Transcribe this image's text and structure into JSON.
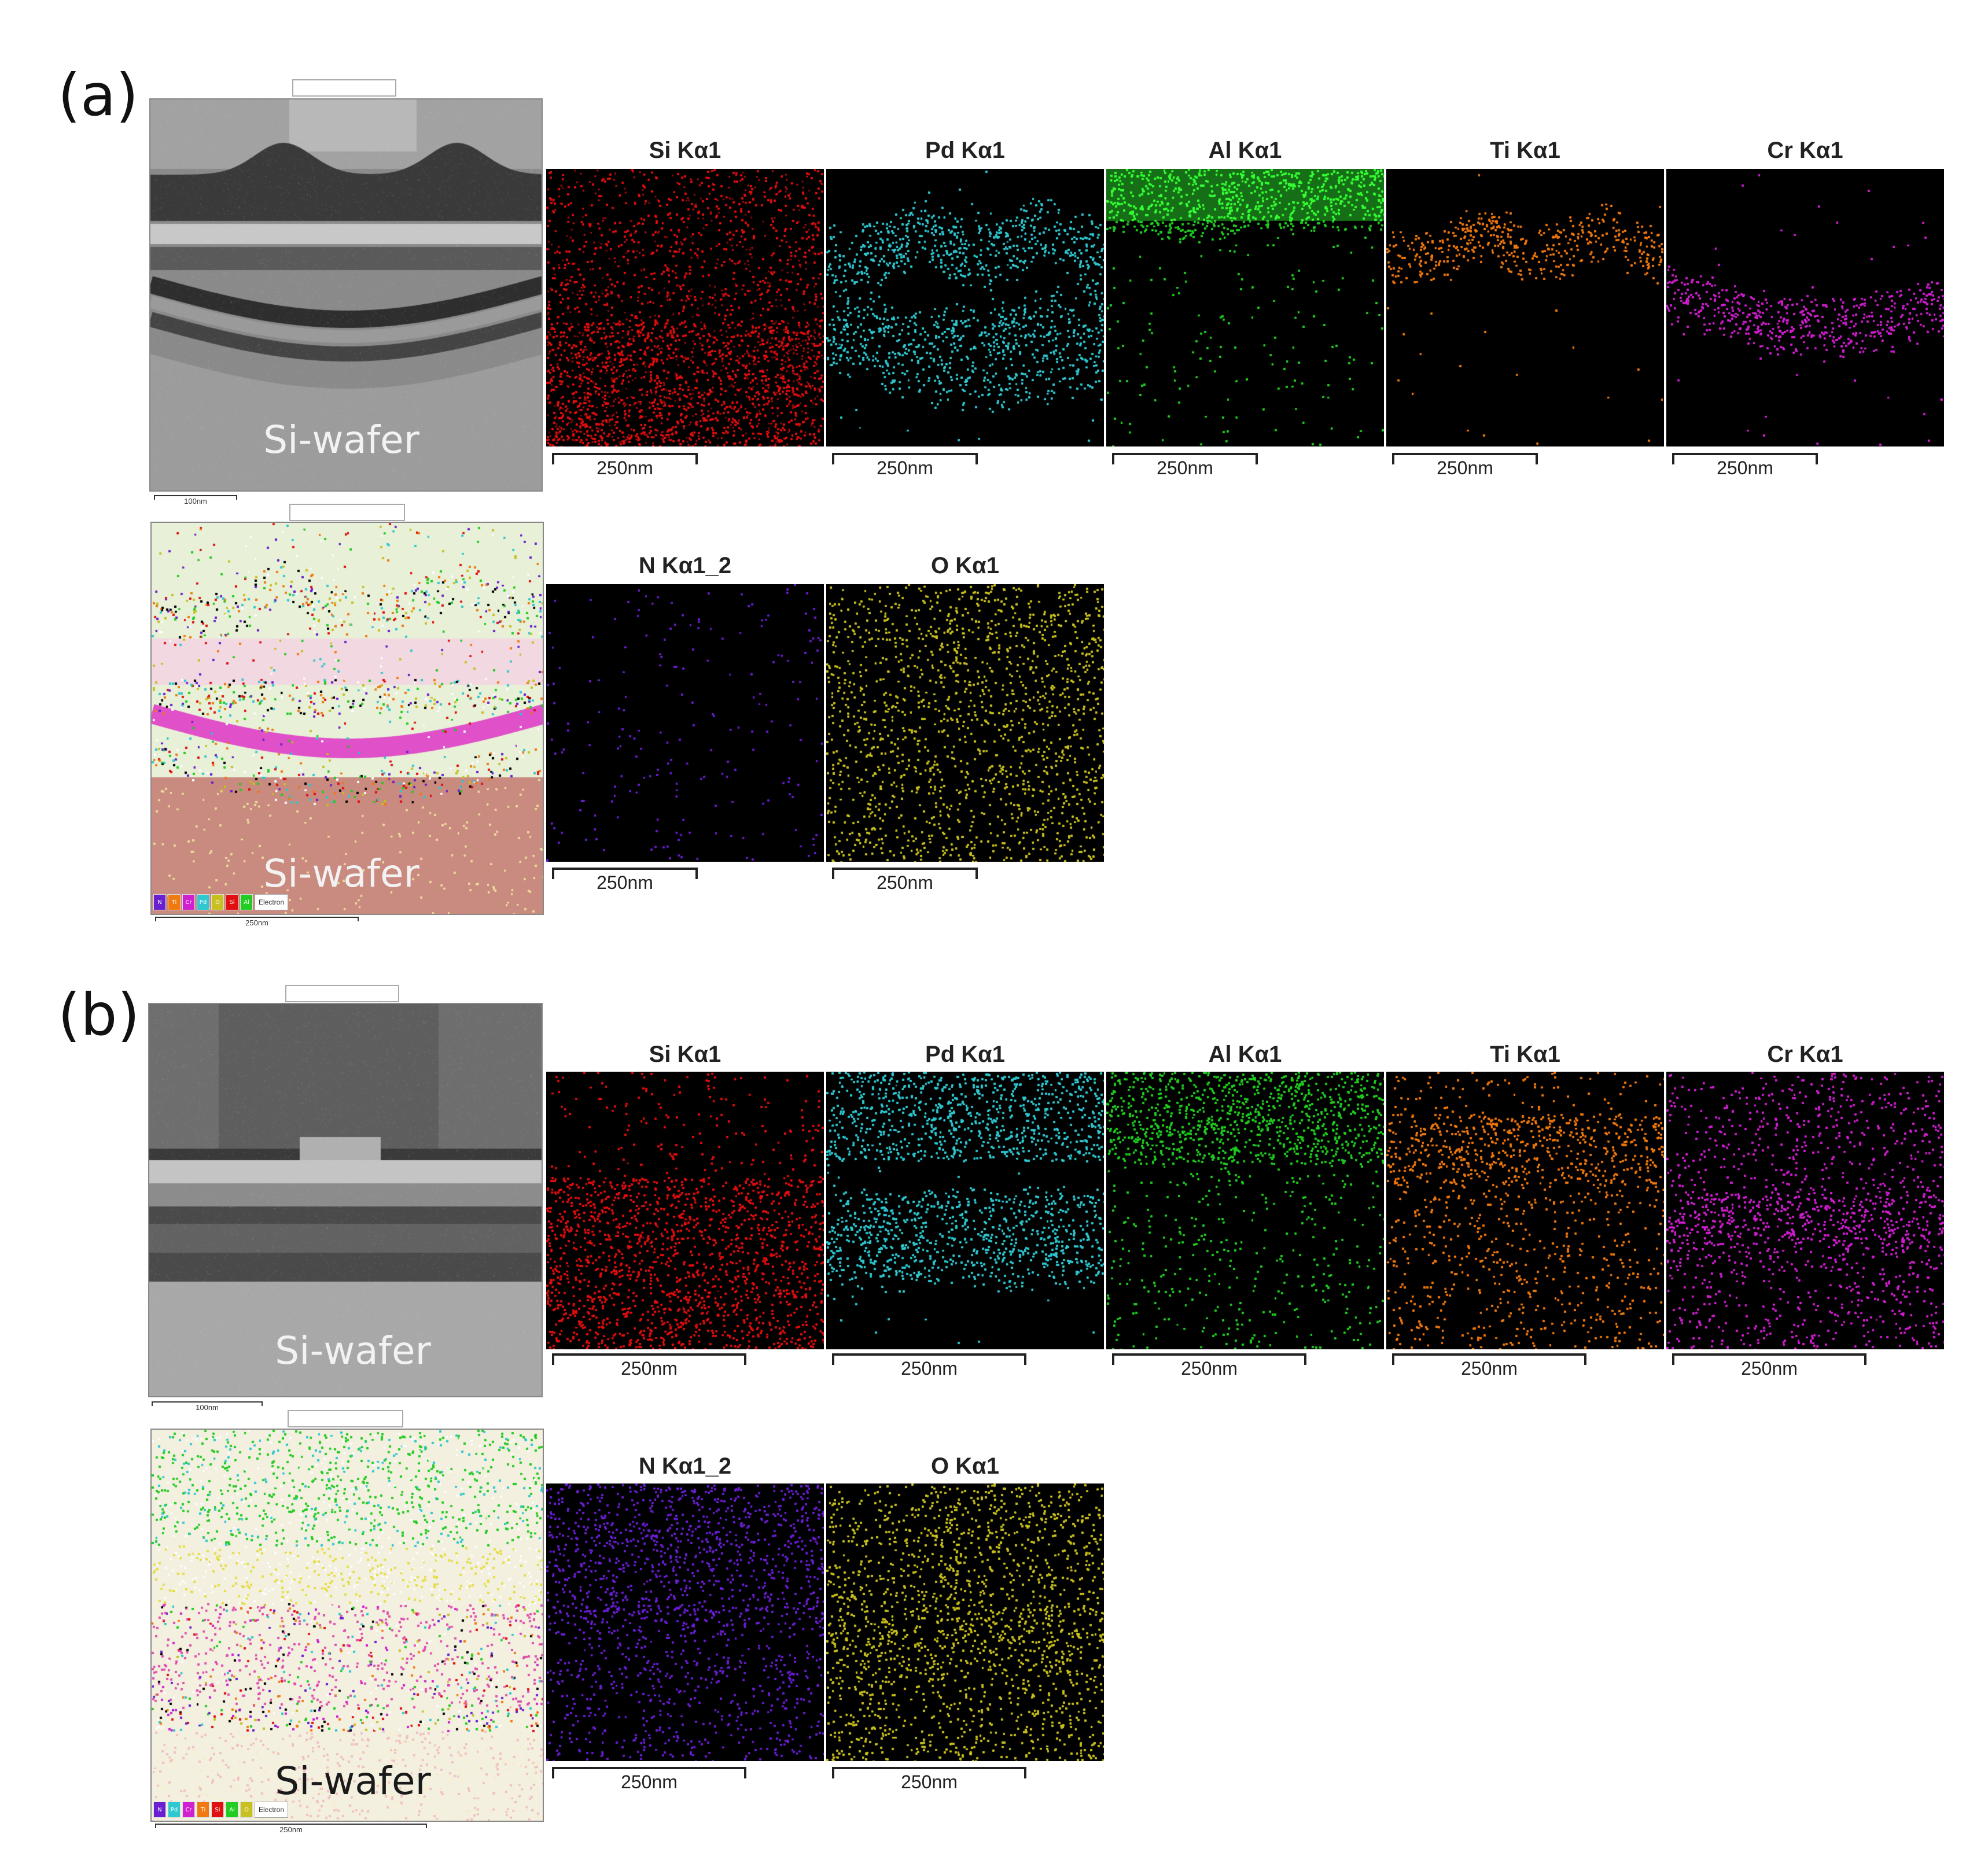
{
  "panels": [
    {
      "label": "(a)",
      "wafer_label": "Si-wafer",
      "overlay_wafer_label": "Si-wafer",
      "image_scalebar": "100nm",
      "overlay_scalebar": "250nm",
      "legend": [
        "N",
        "Ti",
        "Cr",
        "Pd",
        "O",
        "Si",
        "Al"
      ],
      "legend_end": "Electron",
      "maps": [
        {
          "title": "Si Kα1",
          "scalebar": "250nm",
          "color": "#e01010"
        },
        {
          "title": "Pd Kα1",
          "scalebar": "250nm",
          "color": "#30c8d0"
        },
        {
          "title": "Al Kα1",
          "scalebar": "250nm",
          "color": "#22cc22"
        },
        {
          "title": "Ti Kα1",
          "scalebar": "250nm",
          "color": "#f07a10"
        },
        {
          "title": "Cr Kα1",
          "scalebar": "250nm",
          "color": "#d020d0"
        },
        {
          "title": "N Kα1_2",
          "scalebar": "250nm",
          "color": "#6a20d0"
        },
        {
          "title": "O Kα1",
          "scalebar": "250nm",
          "color": "#c8c020"
        }
      ]
    },
    {
      "label": "(b)",
      "wafer_label": "Si-wafer",
      "overlay_wafer_label": "Si-wafer",
      "image_scalebar": "100nm",
      "overlay_scalebar": "250nm",
      "legend": [
        "N",
        "Pd",
        "Cr",
        "Ti",
        "Si",
        "Al",
        "O"
      ],
      "legend_end": "Electron",
      "maps": [
        {
          "title": "Si Kα1",
          "scalebar": "250nm",
          "color": "#e01010"
        },
        {
          "title": "Pd Kα1",
          "scalebar": "250nm",
          "color": "#30c8d0"
        },
        {
          "title": "Al Kα1",
          "scalebar": "250nm",
          "color": "#22cc22"
        },
        {
          "title": "Ti Kα1",
          "scalebar": "250nm",
          "color": "#f07a10"
        },
        {
          "title": "Cr Kα1",
          "scalebar": "250nm",
          "color": "#d020d0"
        },
        {
          "title": "N Kα1_2",
          "scalebar": "250nm",
          "color": "#6a20d0"
        },
        {
          "title": "O Kα1",
          "scalebar": "250nm",
          "color": "#c8c020"
        }
      ]
    }
  ]
}
